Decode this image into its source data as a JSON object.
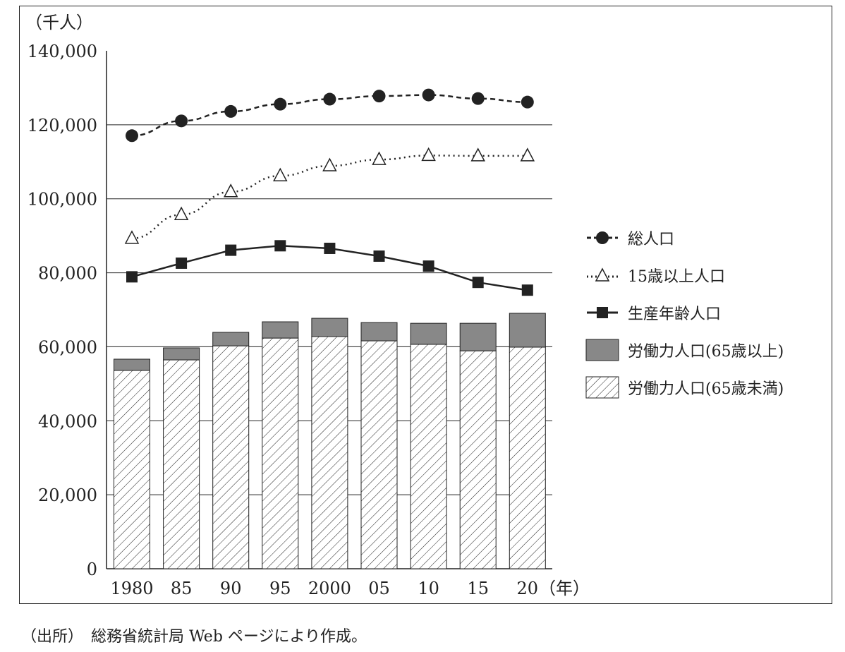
{
  "chart_data": {
    "type": "bar+line",
    "unit_label": "（千人）",
    "x_unit_label": "（年）",
    "categories": [
      "1980",
      "85",
      "90",
      "95",
      "2000",
      "05",
      "10",
      "15",
      "20"
    ],
    "ylim": [
      0,
      140000
    ],
    "yticks": [
      "0",
      "20,000",
      "40,000",
      "60,000",
      "80,000",
      "100,000",
      "120,000",
      "140,000"
    ],
    "ytick_values": [
      0,
      20000,
      40000,
      60000,
      80000,
      100000,
      120000,
      140000
    ],
    "grid": true,
    "legend_position": "right",
    "series": [
      {
        "name": "総人口",
        "type": "line",
        "style": "dashed",
        "marker": "filled-circle",
        "values": [
          117060,
          121049,
          123611,
          125570,
          126926,
          127768,
          128057,
          127095,
          126146
        ]
      },
      {
        "name": "15歳以上人口",
        "type": "line",
        "style": "dotted",
        "marker": "open-triangle",
        "values": [
          89300,
          95700,
          101900,
          106200,
          108900,
          110600,
          111700,
          111600,
          111600
        ]
      },
      {
        "name": "生産年齢人口",
        "type": "line",
        "style": "solid",
        "marker": "filled-square",
        "values": [
          78900,
          82600,
          86100,
          87300,
          86600,
          84500,
          81800,
          77400,
          75300
        ]
      },
      {
        "name": "労働力人口(65歳以上)",
        "type": "bar",
        "stack": "labor",
        "fill": "#888888",
        "values": [
          3050,
          3250,
          3650,
          4400,
          4950,
          4950,
          5700,
          7450,
          9150
        ]
      },
      {
        "name": "労働力人口(65歳未満)",
        "type": "bar",
        "stack": "labor",
        "fill": "hatch",
        "values": [
          53600,
          56450,
          60250,
          62350,
          62750,
          61600,
          60650,
          58900,
          59900
        ]
      }
    ]
  },
  "source_note": "（出所）　総務省統計局 Web ページにより作成。"
}
